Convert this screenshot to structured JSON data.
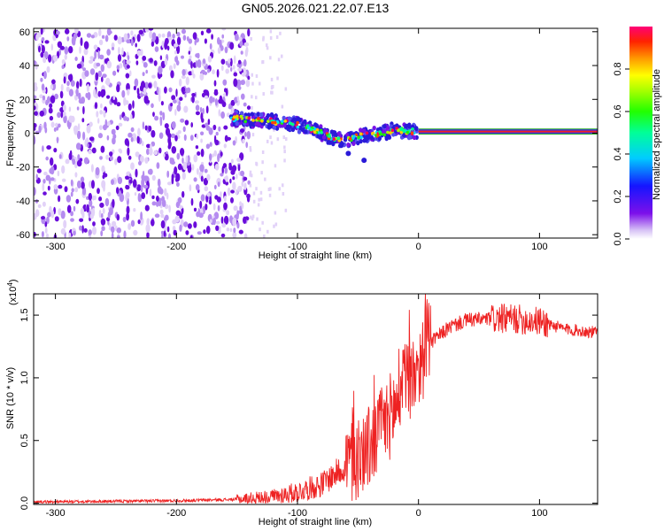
{
  "figure": {
    "title": "GN05.2026.021.22.07.E13"
  },
  "colors": {
    "scatter_main": "#6a0ddb",
    "scatter_light": "#b58cf0",
    "scatter_faint": "#e2d2f8",
    "band_line_red": "#ee2222",
    "band_line_green": "#22aa22",
    "snr_line": "#ee2222",
    "axis": "#000000"
  },
  "chart_data": [
    {
      "type": "heatmap",
      "name": "spectrogram",
      "title": "GN05.2026.021.22.07.E13",
      "xlabel": "Height of straight line (km)",
      "ylabel": "Frequency (Hz)",
      "xlim": [
        -318,
        148
      ],
      "ylim": [
        -62,
        62
      ],
      "xticks": [
        -300,
        -200,
        -100,
        0,
        100
      ],
      "yticks": [
        -60,
        -40,
        -20,
        0,
        20,
        40,
        60
      ],
      "noise_region_x": [
        -318,
        -140
      ],
      "noise_tail_x": [
        -140,
        -110
      ],
      "signal_track": [
        {
          "x": -155,
          "y": 9
        },
        {
          "x": -140,
          "y": 8
        },
        {
          "x": -120,
          "y": 7
        },
        {
          "x": -100,
          "y": 5
        },
        {
          "x": -90,
          "y": 3
        },
        {
          "x": -80,
          "y": 0
        },
        {
          "x": -70,
          "y": -3
        },
        {
          "x": -60,
          "y": -4
        },
        {
          "x": -50,
          "y": -2
        },
        {
          "x": -40,
          "y": -1
        },
        {
          "x": -30,
          "y": 0
        },
        {
          "x": -20,
          "y": 2
        },
        {
          "x": -10,
          "y": 1
        },
        {
          "x": 0,
          "y": 1
        }
      ],
      "band_line": {
        "x_from": 0,
        "x_to": 148,
        "y": 1,
        "half_width": 1.5
      },
      "outliers": [
        {
          "x": -45,
          "y": -16
        },
        {
          "x": -58,
          "y": -12
        },
        {
          "x": 70,
          "y": 1
        },
        {
          "x": 78,
          "y": 1
        },
        {
          "x": 85,
          "y": 1
        },
        {
          "x": 92,
          "y": 1
        },
        {
          "x": 101,
          "y": 1
        }
      ],
      "colorbar": {
        "label": "Normalized spectral amplitude",
        "range": [
          0,
          1
        ],
        "ticks": [
          "0.0",
          "0.2",
          "0.4",
          "0.6",
          "0.8"
        ]
      }
    },
    {
      "type": "line",
      "name": "snr",
      "xlabel": "Height of straight line (km)",
      "ylabel": "SNR (10 * v/v)",
      "exponent_label": "(x10",
      "exponent_power": "4",
      "exponent_close": ")",
      "xlim": [
        -318,
        148
      ],
      "ylim": [
        -0.01,
        1.67
      ],
      "xticks": [
        -300,
        -200,
        -100,
        0,
        100
      ],
      "yticks": [
        0.0,
        0.5,
        1.0,
        1.5
      ],
      "ytick_labels": [
        "0.0",
        "0.5",
        "1.0",
        "1.5"
      ],
      "series": [
        {
          "name": "SNR",
          "envelope": [
            {
              "x": -318,
              "y": 0.01
            },
            {
              "x": -250,
              "y": 0.015
            },
            {
              "x": -200,
              "y": 0.02
            },
            {
              "x": -150,
              "y": 0.03
            },
            {
              "x": -120,
              "y": 0.05
            },
            {
              "x": -100,
              "y": 0.09
            },
            {
              "x": -80,
              "y": 0.15
            },
            {
              "x": -60,
              "y": 0.3
            },
            {
              "x": -40,
              "y": 0.45
            },
            {
              "x": -30,
              "y": 0.6
            },
            {
              "x": -20,
              "y": 0.75
            },
            {
              "x": -10,
              "y": 0.95
            },
            {
              "x": 0,
              "y": 1.1
            },
            {
              "x": 10,
              "y": 1.28
            },
            {
              "x": 25,
              "y": 1.4
            },
            {
              "x": 40,
              "y": 1.46
            },
            {
              "x": 60,
              "y": 1.47
            },
            {
              "x": 80,
              "y": 1.47
            },
            {
              "x": 100,
              "y": 1.45
            },
            {
              "x": 120,
              "y": 1.39
            },
            {
              "x": 148,
              "y": 1.36
            }
          ]
        }
      ]
    }
  ]
}
